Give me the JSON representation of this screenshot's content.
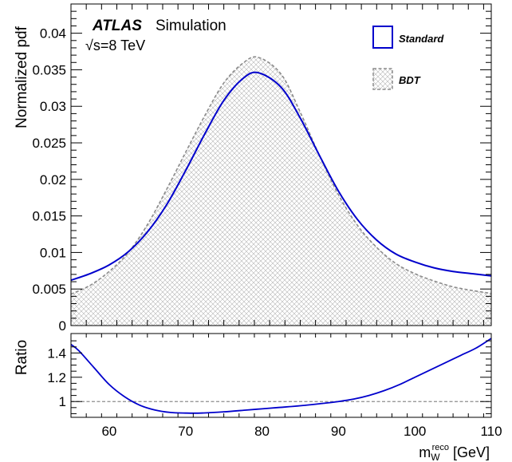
{
  "chart_data": [
    {
      "type": "line",
      "panel": "main",
      "ylabel": "Normalized pdf",
      "xlim": [
        55,
        110
      ],
      "ylim": [
        0,
        0.044
      ],
      "yticks": [
        "0",
        "0.005",
        "0.01",
        "0.015",
        "0.02",
        "0.025",
        "0.03",
        "0.035",
        "0.04"
      ],
      "ytick_values": [
        0,
        0.005,
        0.01,
        0.015,
        0.02,
        0.025,
        0.03,
        0.035,
        0.04
      ],
      "annotations": {
        "experiment": "ATLAS",
        "label": "Simulation",
        "energy": "√s=8 TeV"
      },
      "legend": {
        "placement": "top-right",
        "entries": [
          "Standard",
          "BDT"
        ]
      },
      "series": [
        {
          "name": "Standard",
          "style": "solid",
          "color": "#0000cc",
          "x": [
            55,
            57.5,
            60,
            62.5,
            65,
            67.5,
            70,
            72.5,
            75,
            77.5,
            79.5,
            82.5,
            85,
            87.5,
            90,
            92.5,
            95,
            97.5,
            100,
            102.5,
            105,
            107.5,
            110
          ],
          "y": [
            0.0062,
            0.0071,
            0.0083,
            0.0101,
            0.0128,
            0.0165,
            0.0212,
            0.0262,
            0.0308,
            0.0338,
            0.0346,
            0.0326,
            0.0284,
            0.0233,
            0.0184,
            0.0145,
            0.0117,
            0.0098,
            0.0087,
            0.0079,
            0.0074,
            0.0071,
            0.0068
          ]
        },
        {
          "name": "BDT",
          "style": "dashed-filled",
          "color": "#888888",
          "x": [
            55,
            57.5,
            60,
            62.5,
            65,
            67.5,
            70,
            72.5,
            75,
            77.5,
            79.5,
            82.5,
            85,
            87.5,
            90,
            92.5,
            95,
            97.5,
            100,
            102.5,
            105,
            107.5,
            110
          ],
          "y": [
            0.0043,
            0.0055,
            0.0074,
            0.01,
            0.0138,
            0.0186,
            0.0237,
            0.0287,
            0.0332,
            0.0359,
            0.0367,
            0.0344,
            0.0292,
            0.0233,
            0.0179,
            0.0137,
            0.0107,
            0.0085,
            0.0071,
            0.0061,
            0.0053,
            0.0048,
            0.0044
          ]
        }
      ]
    },
    {
      "type": "line",
      "panel": "ratio",
      "ylabel": "Ratio",
      "xlabel_main": "m",
      "xlabel_sub": "W",
      "xlabel_sup": "reco",
      "xlabel_unit": " [GeV]",
      "xlim": [
        55,
        110
      ],
      "ylim": [
        0.87,
        1.56
      ],
      "xticks": [
        "60",
        "70",
        "80",
        "90",
        "100",
        "110"
      ],
      "xtick_values": [
        60,
        70,
        80,
        90,
        100,
        110
      ],
      "yticks": [
        "1",
        "1.2",
        "1.4"
      ],
      "ytick_values": [
        1,
        1.2,
        1.4
      ],
      "reference_line": 1,
      "series": [
        {
          "name": "Standard/BDT",
          "color": "#0000cc",
          "x": [
            55,
            56,
            58,
            60,
            62,
            64,
            66,
            68,
            70,
            72,
            75,
            78,
            80,
            82,
            85,
            88,
            90,
            92,
            94,
            96,
            98,
            100,
            102,
            104,
            106,
            108,
            110
          ],
          "y": [
            1.47,
            1.42,
            1.28,
            1.14,
            1.04,
            0.97,
            0.93,
            0.91,
            0.905,
            0.905,
            0.915,
            0.93,
            0.94,
            0.95,
            0.965,
            0.985,
            1.0,
            1.02,
            1.05,
            1.09,
            1.14,
            1.2,
            1.26,
            1.32,
            1.38,
            1.44,
            1.52
          ]
        }
      ]
    }
  ]
}
